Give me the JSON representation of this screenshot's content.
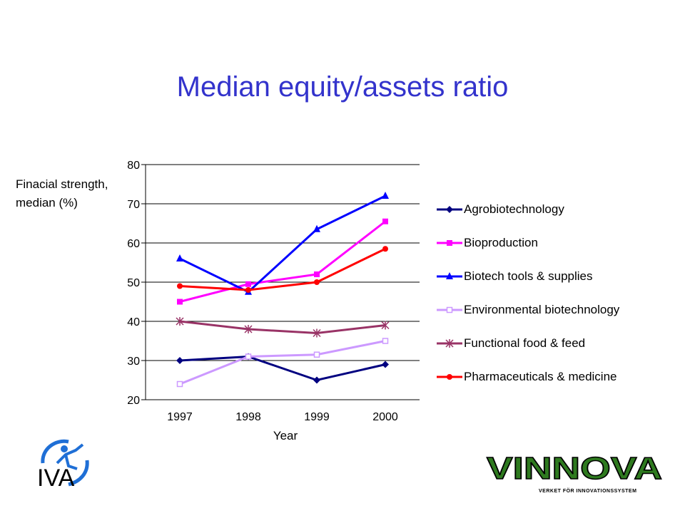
{
  "title": "Median equity/assets ratio",
  "chart_data": {
    "type": "line",
    "title": "Median equity/assets ratio",
    "ylabel_lines": [
      "Finacial strength,",
      "median (%)"
    ],
    "xlabel": "Year",
    "categories": [
      "1997",
      "1998",
      "1999",
      "2000"
    ],
    "yticks": [
      "20",
      "30",
      "40",
      "50",
      "60",
      "70",
      "80"
    ],
    "ylim": [
      20,
      80
    ],
    "grid": true,
    "legend_position": "right",
    "series": [
      {
        "name": "Agrobiotechnology",
        "values": [
          30,
          31,
          25,
          29
        ],
        "color": "#000080",
        "marker": "diamond"
      },
      {
        "name": "Bioproduction",
        "values": [
          45,
          49.5,
          52,
          65.5
        ],
        "color": "#ff00ff",
        "marker": "square"
      },
      {
        "name": "Biotech tools & supplies",
        "values": [
          56,
          47.5,
          63.5,
          72
        ],
        "color": "#0000ff",
        "marker": "triangle"
      },
      {
        "name": "Environmental biotechnology",
        "values": [
          24,
          31,
          31.5,
          35
        ],
        "color": "#cc99ff",
        "marker": "open-square"
      },
      {
        "name": "Functional food & feed",
        "values": [
          40,
          38,
          37,
          39
        ],
        "color": "#993366",
        "marker": "asterisk"
      },
      {
        "name": "Pharmaceuticals & medicine",
        "values": [
          49,
          48,
          50,
          58.5
        ],
        "color": "#ff0000",
        "marker": "circle"
      }
    ]
  },
  "logos": {
    "left": "IVA",
    "right": "VINNOVA",
    "right_tagline": "VERKET FÖR INNOVATIONSSYSTEM"
  }
}
